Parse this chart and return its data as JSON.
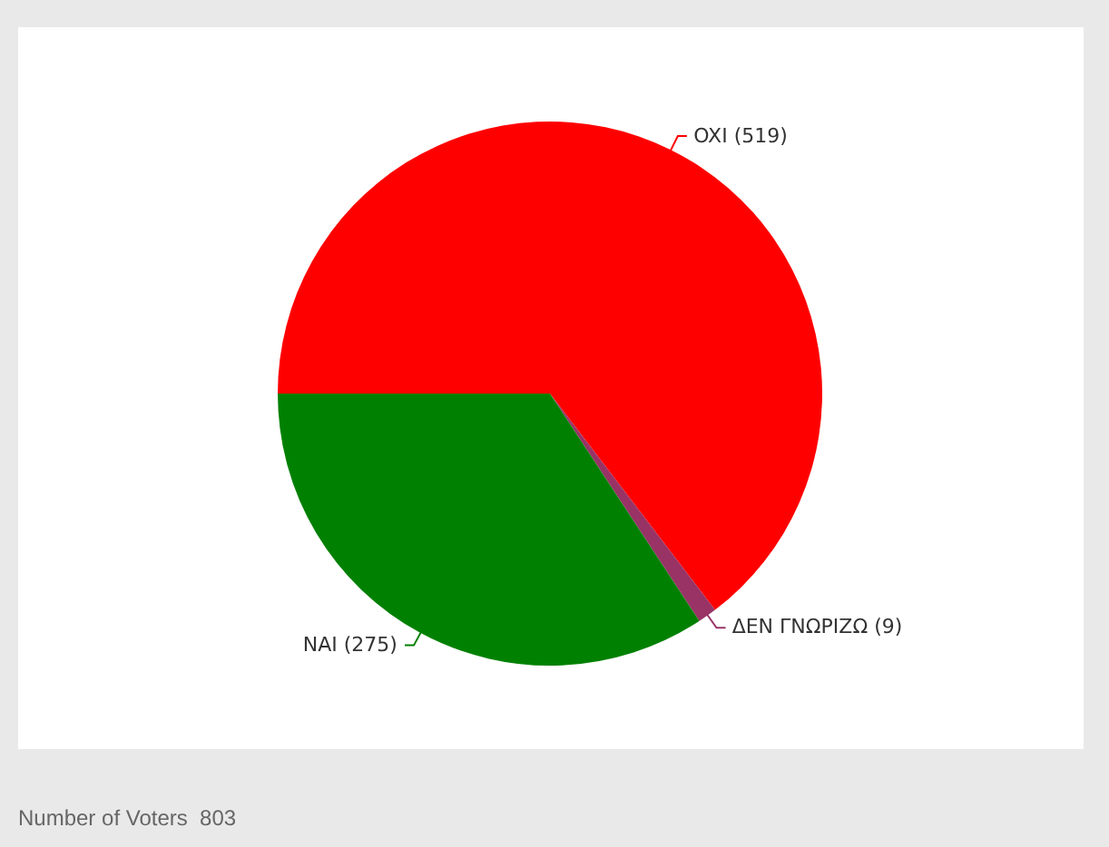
{
  "chart_data": {
    "type": "pie",
    "categories": [
      "OXI (519)",
      "ΔΕΝ ΓΝΩΡΙΖΩ (9)",
      "NAI (275)"
    ],
    "values": [
      519,
      9,
      275
    ],
    "colors": [
      "#ff0000",
      "#993366",
      "#008000"
    ],
    "legend": false,
    "annotations": [
      "Number of Voters  803"
    ]
  }
}
